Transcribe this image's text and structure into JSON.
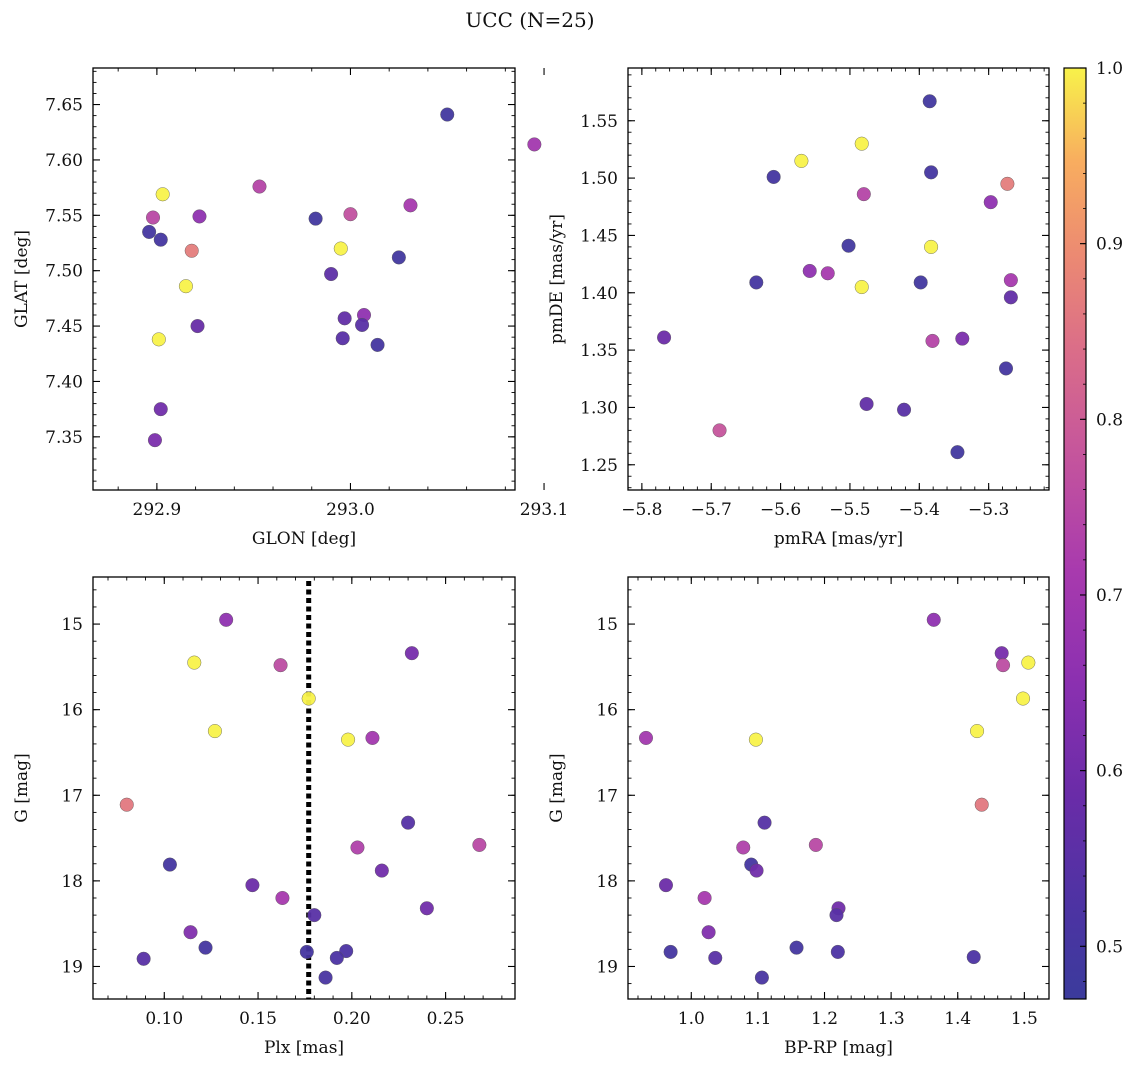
{
  "figure": {
    "title": "UCC (N=25)"
  },
  "colorbar": {
    "range": [
      0.47,
      1.0
    ],
    "ticks": [
      "0.5",
      "0.6",
      "0.7",
      "0.8",
      "0.9",
      "1.0"
    ],
    "tick_values": [
      0.5,
      0.6,
      0.7,
      0.8,
      0.9,
      1.0
    ],
    "colormap": "plasma"
  },
  "chart_data": [
    {
      "type": "scatter",
      "xlabel": "GLON [deg]",
      "ylabel": "GLAT [deg]",
      "xlim": [
        292.867,
        293.085
      ],
      "ylim": [
        7.302,
        7.683
      ],
      "xticks": [
        "292.9",
        "293.0",
        "293.1"
      ],
      "xtick_values": [
        292.9,
        293.0,
        293.1
      ],
      "yticks": [
        "7.35",
        "7.40",
        "7.45",
        "7.50",
        "7.55",
        "7.60",
        "7.65"
      ],
      "ytick_values": [
        7.35,
        7.4,
        7.45,
        7.5,
        7.55,
        7.6,
        7.65
      ],
      "invert_y": false,
      "points": [
        {
          "x": 293.05,
          "y": 7.641,
          "c": 0.49
        },
        {
          "x": 293.095,
          "y": 7.614,
          "c": 0.7
        },
        {
          "x": 292.903,
          "y": 7.569,
          "c": 1.0
        },
        {
          "x": 292.953,
          "y": 7.576,
          "c": 0.74
        },
        {
          "x": 293.031,
          "y": 7.559,
          "c": 0.71
        },
        {
          "x": 292.898,
          "y": 7.548,
          "c": 0.75
        },
        {
          "x": 292.922,
          "y": 7.549,
          "c": 0.66
        },
        {
          "x": 292.982,
          "y": 7.547,
          "c": 0.49
        },
        {
          "x": 293.0,
          "y": 7.551,
          "c": 0.77
        },
        {
          "x": 292.896,
          "y": 7.535,
          "c": 0.5
        },
        {
          "x": 292.902,
          "y": 7.528,
          "c": 0.5
        },
        {
          "x": 292.918,
          "y": 7.518,
          "c": 0.87
        },
        {
          "x": 292.995,
          "y": 7.52,
          "c": 1.0
        },
        {
          "x": 293.025,
          "y": 7.512,
          "c": 0.49
        },
        {
          "x": 292.99,
          "y": 7.497,
          "c": 0.56
        },
        {
          "x": 292.915,
          "y": 7.486,
          "c": 1.0
        },
        {
          "x": 293.007,
          "y": 7.46,
          "c": 0.66
        },
        {
          "x": 292.997,
          "y": 7.457,
          "c": 0.57
        },
        {
          "x": 293.006,
          "y": 7.451,
          "c": 0.55
        },
        {
          "x": 292.921,
          "y": 7.45,
          "c": 0.58
        },
        {
          "x": 292.996,
          "y": 7.439,
          "c": 0.55
        },
        {
          "x": 293.014,
          "y": 7.433,
          "c": 0.5
        },
        {
          "x": 292.901,
          "y": 7.438,
          "c": 1.0
        },
        {
          "x": 292.902,
          "y": 7.375,
          "c": 0.6
        },
        {
          "x": 292.899,
          "y": 7.347,
          "c": 0.62
        }
      ]
    },
    {
      "type": "scatter",
      "xlabel": "pmRA [mas/yr]",
      "ylabel": "pmDE [mas/yr]",
      "xlim": [
        -5.82,
        -5.213
      ],
      "ylim": [
        1.228,
        1.596
      ],
      "xticks": [
        "−5.8",
        "−5.7",
        "−5.6",
        "−5.5",
        "−5.4",
        "−5.3"
      ],
      "xtick_values": [
        -5.8,
        -5.7,
        -5.6,
        -5.5,
        -5.4,
        -5.3
      ],
      "yticks": [
        "1.25",
        "1.30",
        "1.35",
        "1.40",
        "1.45",
        "1.50",
        "1.55"
      ],
      "ytick_values": [
        1.25,
        1.3,
        1.35,
        1.4,
        1.45,
        1.5,
        1.55
      ],
      "invert_y": false,
      "points": [
        {
          "x": -5.385,
          "y": 1.567,
          "c": 0.49
        },
        {
          "x": -5.483,
          "y": 1.53,
          "c": 1.0
        },
        {
          "x": -5.57,
          "y": 1.515,
          "c": 1.0
        },
        {
          "x": -5.61,
          "y": 1.501,
          "c": 0.5
        },
        {
          "x": -5.383,
          "y": 1.505,
          "c": 0.5
        },
        {
          "x": -5.273,
          "y": 1.495,
          "c": 0.87
        },
        {
          "x": -5.48,
          "y": 1.486,
          "c": 0.74
        },
        {
          "x": -5.297,
          "y": 1.479,
          "c": 0.66
        },
        {
          "x": -5.502,
          "y": 1.441,
          "c": 0.49
        },
        {
          "x": -5.383,
          "y": 1.44,
          "c": 1.0
        },
        {
          "x": -5.558,
          "y": 1.419,
          "c": 0.66
        },
        {
          "x": -5.532,
          "y": 1.417,
          "c": 0.71
        },
        {
          "x": -5.268,
          "y": 1.411,
          "c": 0.71
        },
        {
          "x": -5.635,
          "y": 1.409,
          "c": 0.5
        },
        {
          "x": -5.398,
          "y": 1.409,
          "c": 0.49
        },
        {
          "x": -5.483,
          "y": 1.405,
          "c": 1.0
        },
        {
          "x": -5.268,
          "y": 1.396,
          "c": 0.57
        },
        {
          "x": -5.768,
          "y": 1.361,
          "c": 0.59
        },
        {
          "x": -5.381,
          "y": 1.358,
          "c": 0.74
        },
        {
          "x": -5.338,
          "y": 1.36,
          "c": 0.62
        },
        {
          "x": -5.275,
          "y": 1.334,
          "c": 0.5
        },
        {
          "x": -5.476,
          "y": 1.303,
          "c": 0.57
        },
        {
          "x": -5.422,
          "y": 1.298,
          "c": 0.55
        },
        {
          "x": -5.688,
          "y": 1.28,
          "c": 0.78
        },
        {
          "x": -5.345,
          "y": 1.261,
          "c": 0.49
        }
      ]
    },
    {
      "type": "scatter",
      "xlabel": "Plx [mas]",
      "ylabel": "G [mag]",
      "xlim": [
        0.062,
        0.287
      ],
      "ylim": [
        19.38,
        14.45
      ],
      "xticks": [
        "0.10",
        "0.15",
        "0.20",
        "0.25"
      ],
      "xtick_values": [
        0.1,
        0.15,
        0.2,
        0.25
      ],
      "yticks": [
        "15",
        "16",
        "17",
        "18",
        "19"
      ],
      "ytick_values": [
        15,
        16,
        17,
        18,
        19
      ],
      "invert_y": true,
      "vline": {
        "x": 0.177,
        "style": "dotted"
      },
      "points": [
        {
          "x": 0.133,
          "y": 14.95,
          "c": 0.66
        },
        {
          "x": 0.232,
          "y": 15.34,
          "c": 0.61
        },
        {
          "x": 0.116,
          "y": 15.45,
          "c": 1.0
        },
        {
          "x": 0.162,
          "y": 15.48,
          "c": 0.76
        },
        {
          "x": 0.177,
          "y": 15.87,
          "c": 1.0
        },
        {
          "x": 0.127,
          "y": 16.25,
          "c": 1.0
        },
        {
          "x": 0.198,
          "y": 16.35,
          "c": 1.0
        },
        {
          "x": 0.211,
          "y": 16.33,
          "c": 0.7
        },
        {
          "x": 0.08,
          "y": 17.11,
          "c": 0.86
        },
        {
          "x": 0.23,
          "y": 17.32,
          "c": 0.54
        },
        {
          "x": 0.268,
          "y": 17.58,
          "c": 0.75
        },
        {
          "x": 0.203,
          "y": 17.61,
          "c": 0.73
        },
        {
          "x": 0.103,
          "y": 17.81,
          "c": 0.5
        },
        {
          "x": 0.216,
          "y": 17.88,
          "c": 0.6
        },
        {
          "x": 0.147,
          "y": 18.05,
          "c": 0.59
        },
        {
          "x": 0.163,
          "y": 18.2,
          "c": 0.71
        },
        {
          "x": 0.24,
          "y": 18.32,
          "c": 0.6
        },
        {
          "x": 0.18,
          "y": 18.4,
          "c": 0.55
        },
        {
          "x": 0.114,
          "y": 18.6,
          "c": 0.63
        },
        {
          "x": 0.122,
          "y": 18.78,
          "c": 0.5
        },
        {
          "x": 0.176,
          "y": 18.83,
          "c": 0.5
        },
        {
          "x": 0.197,
          "y": 18.82,
          "c": 0.52
        },
        {
          "x": 0.192,
          "y": 18.9,
          "c": 0.52
        },
        {
          "x": 0.089,
          "y": 18.91,
          "c": 0.55
        },
        {
          "x": 0.186,
          "y": 19.13,
          "c": 0.51
        }
      ]
    },
    {
      "type": "scatter",
      "xlabel": "BP-RP [mag]",
      "ylabel": "G [mag]",
      "xlim": [
        0.905,
        1.537
      ],
      "ylim": [
        19.38,
        14.45
      ],
      "xticks": [
        "1.0",
        "1.1",
        "1.2",
        "1.3",
        "1.4",
        "1.5"
      ],
      "xtick_values": [
        1.0,
        1.1,
        1.2,
        1.3,
        1.4,
        1.5
      ],
      "yticks": [
        "15",
        "16",
        "17",
        "18",
        "19"
      ],
      "ytick_values": [
        15,
        16,
        17,
        18,
        19
      ],
      "invert_y": true,
      "points": [
        {
          "x": 1.364,
          "y": 14.95,
          "c": 0.66
        },
        {
          "x": 1.466,
          "y": 15.34,
          "c": 0.61
        },
        {
          "x": 1.506,
          "y": 15.45,
          "c": 1.0
        },
        {
          "x": 1.468,
          "y": 15.48,
          "c": 0.76
        },
        {
          "x": 1.498,
          "y": 15.87,
          "c": 1.0
        },
        {
          "x": 1.429,
          "y": 16.25,
          "c": 1.0
        },
        {
          "x": 0.932,
          "y": 16.33,
          "c": 0.7
        },
        {
          "x": 1.097,
          "y": 16.35,
          "c": 1.0
        },
        {
          "x": 1.436,
          "y": 17.11,
          "c": 0.86
        },
        {
          "x": 1.11,
          "y": 17.32,
          "c": 0.54
        },
        {
          "x": 1.187,
          "y": 17.58,
          "c": 0.75
        },
        {
          "x": 1.078,
          "y": 17.61,
          "c": 0.73
        },
        {
          "x": 1.09,
          "y": 17.81,
          "c": 0.5
        },
        {
          "x": 1.098,
          "y": 17.88,
          "c": 0.6
        },
        {
          "x": 0.962,
          "y": 18.05,
          "c": 0.59
        },
        {
          "x": 1.02,
          "y": 18.2,
          "c": 0.71
        },
        {
          "x": 1.221,
          "y": 18.32,
          "c": 0.6
        },
        {
          "x": 1.218,
          "y": 18.4,
          "c": 0.55
        },
        {
          "x": 1.026,
          "y": 18.6,
          "c": 0.63
        },
        {
          "x": 1.158,
          "y": 18.78,
          "c": 0.5
        },
        {
          "x": 0.969,
          "y": 18.83,
          "c": 0.5
        },
        {
          "x": 1.22,
          "y": 18.83,
          "c": 0.52
        },
        {
          "x": 1.424,
          "y": 18.89,
          "c": 0.52
        },
        {
          "x": 1.036,
          "y": 18.9,
          "c": 0.55
        },
        {
          "x": 1.106,
          "y": 19.13,
          "c": 0.51
        }
      ]
    }
  ]
}
